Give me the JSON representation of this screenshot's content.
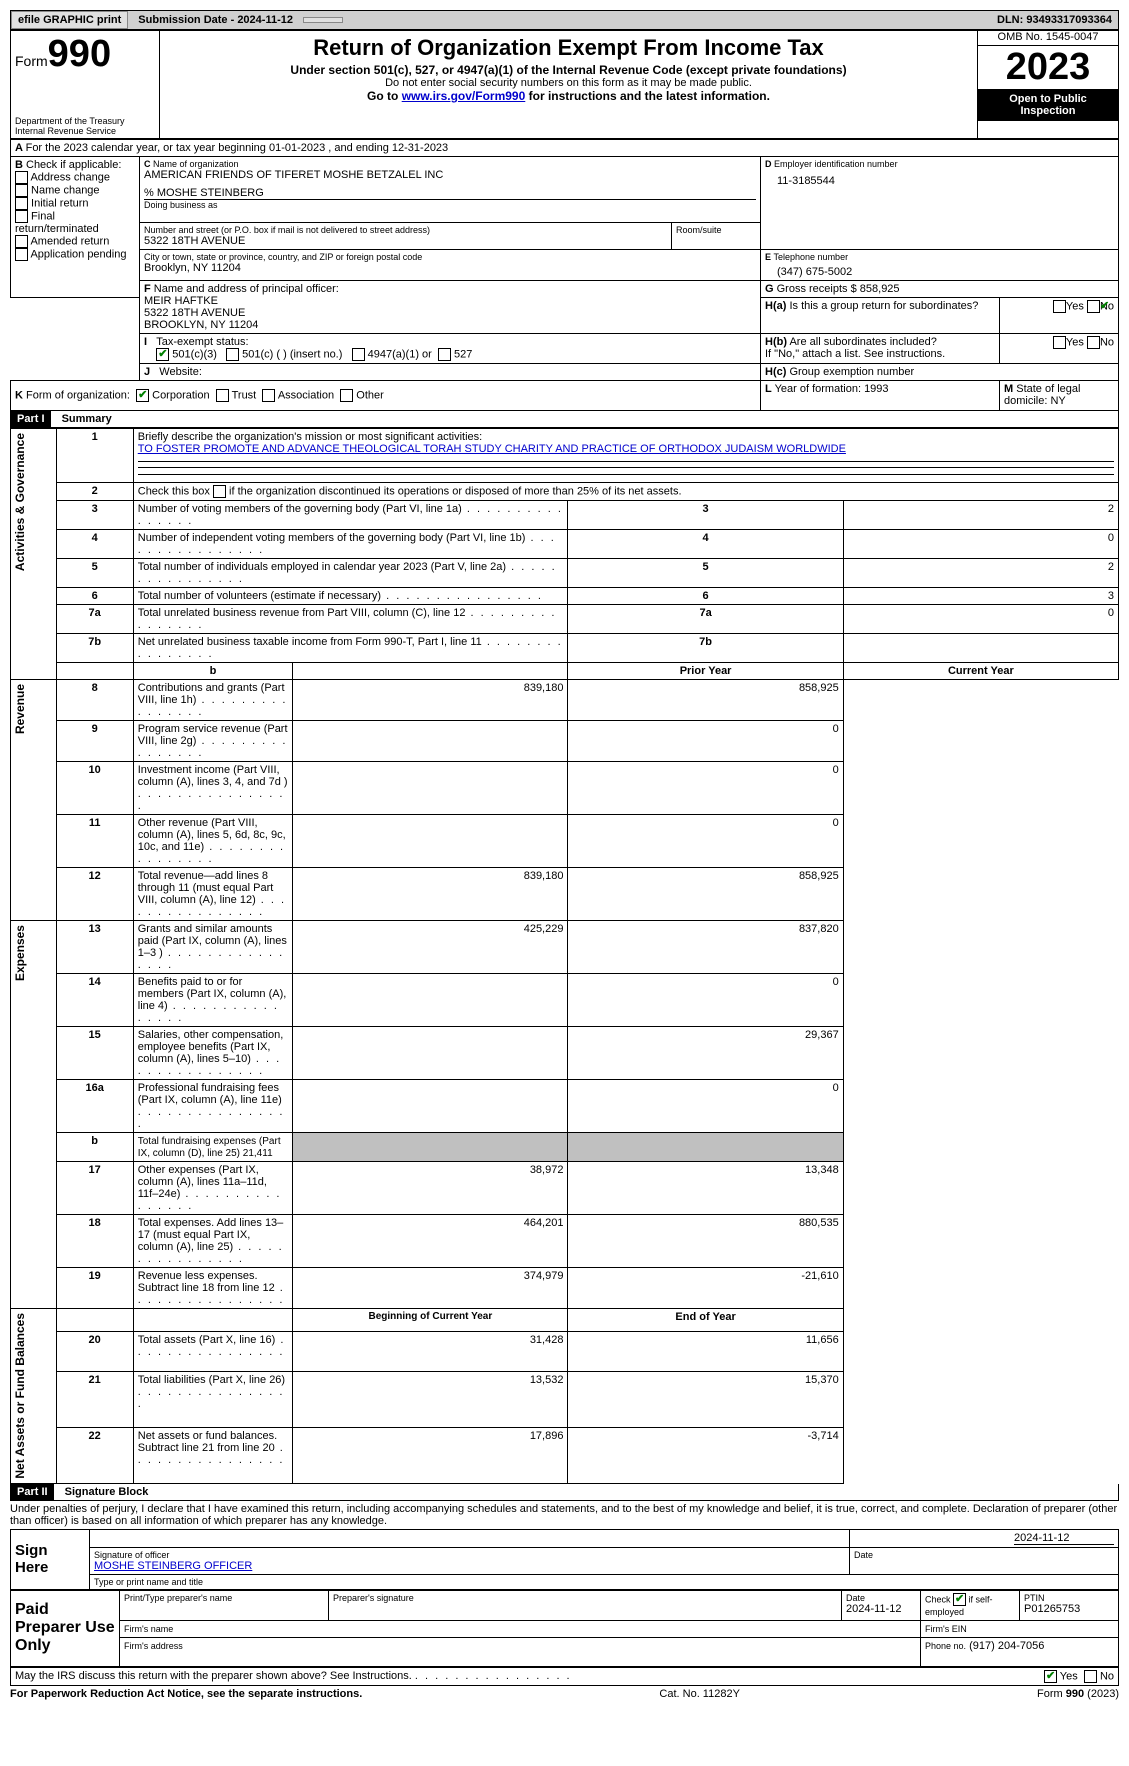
{
  "top": {
    "efile": "efile GRAPHIC print",
    "submission": "Submission Date - 2024-11-12",
    "dln": "DLN: 93493317093364"
  },
  "header": {
    "form_word": "Form",
    "form_num": "990",
    "dept": "Department of the Treasury\nInternal Revenue Service",
    "title": "Return of Organization Exempt From Income Tax",
    "sub1": "Under section 501(c), 527, or 4947(a)(1) of the Internal Revenue Code (except private foundations)",
    "sub2": "Do not enter social security numbers on this form as it may be made public.",
    "sub3_pre": "Go to ",
    "sub3_link": "www.irs.gov/Form990",
    "sub3_post": " for instructions and the latest information.",
    "omb": "OMB No. 1545-0047",
    "year": "2023",
    "open": "Open to Public Inspection"
  },
  "A": {
    "text": "For the 2023 calendar year, or tax year beginning 01-01-2023   , and ending 12-31-2023"
  },
  "B": {
    "label": "Check if applicable:",
    "opts": [
      "Address change",
      "Name change",
      "Initial return",
      "Final return/terminated",
      "Amended return",
      "Application pending"
    ]
  },
  "C": {
    "label": "Name of organization",
    "name": "AMERICAN FRIENDS OF TIFERET MOSHE BETZALEL INC",
    "care": "% MOSHE STEINBERG",
    "dba_label": "Doing business as",
    "street_label": "Number and street (or P.O. box if mail is not delivered to street address)",
    "street": "5322 18TH AVENUE",
    "room_label": "Room/suite",
    "city_label": "City or town, state or province, country, and ZIP or foreign postal code",
    "city": "Brooklyn, NY  11204"
  },
  "D": {
    "label": "Employer identification number",
    "val": "11-3185544"
  },
  "E": {
    "label": "Telephone number",
    "val": "(347) 675-5002"
  },
  "G": {
    "label": "Gross receipts $",
    "val": "858,925"
  },
  "F": {
    "label": "Name and address of principal officer:",
    "name": "MEIR HAFTKE",
    "addr1": "5322 18TH AVENUE",
    "addr2": "BROOKLYN, NY  11204"
  },
  "H": {
    "a": "Is this a group return for subordinates?",
    "b": "Are all subordinates included?",
    "b_note": "If \"No,\" attach a list. See instructions.",
    "c": "Group exemption number",
    "yes": "Yes",
    "no": "No"
  },
  "I": {
    "label": "Tax-exempt status:",
    "o1": "501(c)(3)",
    "o2": "501(c) (  ) (insert no.)",
    "o3": "4947(a)(1) or",
    "o4": "527"
  },
  "J": {
    "label": "Website:"
  },
  "K": {
    "label": "Form of organization:",
    "o1": "Corporation",
    "o2": "Trust",
    "o3": "Association",
    "o4": "Other"
  },
  "L": {
    "label": "Year of formation:",
    "val": "1993"
  },
  "M": {
    "label": "State of legal domicile:",
    "val": "NY"
  },
  "part1": {
    "label": "Part I",
    "title": "Summary"
  },
  "summary": {
    "l1_label": "Briefly describe the organization's mission or most significant activities:",
    "l1_val": "TO FOSTER PROMOTE AND ADVANCE THEOLOGICAL TORAH STUDY CHARITY AND PRACTICE OF ORTHODOX JUDAISM WORLDWIDE",
    "l2": "Check this box      if the organization discontinued its operations or disposed of more than 25% of its net assets.",
    "sideA": "Activities & Governance",
    "sideR": "Revenue",
    "sideE": "Expenses",
    "sideN": "Net Assets or Fund Balances",
    "rows_ag": [
      {
        "n": "3",
        "t": "Number of voting members of the governing body (Part VI, line 1a)",
        "v": "2"
      },
      {
        "n": "4",
        "t": "Number of independent voting members of the governing body (Part VI, line 1b)",
        "v": "0"
      },
      {
        "n": "5",
        "t": "Total number of individuals employed in calendar year 2023 (Part V, line 2a)",
        "v": "2"
      },
      {
        "n": "6",
        "t": "Total number of volunteers (estimate if necessary)",
        "v": "3"
      },
      {
        "n": "7a",
        "t": "Total unrelated business revenue from Part VIII, column (C), line 12",
        "v": "0"
      },
      {
        "n": "7b",
        "t": "Net unrelated business taxable income from Form 990-T, Part I, line 11",
        "v": ""
      }
    ],
    "hdr_prior": "Prior Year",
    "hdr_curr": "Current Year",
    "rows_rev": [
      {
        "n": "8",
        "t": "Contributions and grants (Part VIII, line 1h)",
        "p": "839,180",
        "c": "858,925"
      },
      {
        "n": "9",
        "t": "Program service revenue (Part VIII, line 2g)",
        "p": "",
        "c": "0"
      },
      {
        "n": "10",
        "t": "Investment income (Part VIII, column (A), lines 3, 4, and 7d )",
        "p": "",
        "c": "0"
      },
      {
        "n": "11",
        "t": "Other revenue (Part VIII, column (A), lines 5, 6d, 8c, 9c, 10c, and 11e)",
        "p": "",
        "c": "0"
      },
      {
        "n": "12",
        "t": "Total revenue—add lines 8 through 11 (must equal Part VIII, column (A), line 12)",
        "p": "839,180",
        "c": "858,925"
      }
    ],
    "rows_exp": [
      {
        "n": "13",
        "t": "Grants and similar amounts paid (Part IX, column (A), lines 1–3 )",
        "p": "425,229",
        "c": "837,820"
      },
      {
        "n": "14",
        "t": "Benefits paid to or for members (Part IX, column (A), line 4)",
        "p": "",
        "c": "0"
      },
      {
        "n": "15",
        "t": "Salaries, other compensation, employee benefits (Part IX, column (A), lines 5–10)",
        "p": "",
        "c": "29,367"
      },
      {
        "n": "16a",
        "t": "Professional fundraising fees (Part IX, column (A), line 11e)",
        "p": "",
        "c": "0"
      },
      {
        "n": "b",
        "t": "Total fundraising expenses (Part IX, column (D), line 25) 21,411",
        "p": "GRAY",
        "c": "GRAY",
        "small": true
      },
      {
        "n": "17",
        "t": "Other expenses (Part IX, column (A), lines 11a–11d, 11f–24e)",
        "p": "38,972",
        "c": "13,348"
      },
      {
        "n": "18",
        "t": "Total expenses. Add lines 13–17 (must equal Part IX, column (A), line 25)",
        "p": "464,201",
        "c": "880,535"
      },
      {
        "n": "19",
        "t": "Revenue less expenses. Subtract line 18 from line 12",
        "p": "374,979",
        "c": "-21,610"
      }
    ],
    "hdr_beg": "Beginning of Current Year",
    "hdr_end": "End of Year",
    "rows_net": [
      {
        "n": "20",
        "t": "Total assets (Part X, line 16)",
        "p": "31,428",
        "c": "11,656"
      },
      {
        "n": "21",
        "t": "Total liabilities (Part X, line 26)",
        "p": "13,532",
        "c": "15,370"
      },
      {
        "n": "22",
        "t": "Net assets or fund balances. Subtract line 21 from line 20",
        "p": "17,896",
        "c": "-3,714"
      }
    ]
  },
  "part2": {
    "label": "Part II",
    "title": "Signature Block"
  },
  "perjury": "Under penalties of perjury, I declare that I have examined this return, including accompanying schedules and statements, and to the best of my knowledge and belief, it is true, correct, and complete. Declaration of preparer (other than officer) is based on all information of which preparer has any knowledge.",
  "sign": {
    "here": "Sign Here",
    "sig_label": "Signature of officer",
    "sig_name": "MOSHE STEINBERG OFFICER",
    "name_label": "Type or print name and title",
    "date_label": "Date",
    "date_val": "2024-11-12"
  },
  "paid": {
    "label": "Paid Preparer Use Only",
    "pname": "Print/Type preparer's name",
    "psig": "Preparer's signature",
    "pdate": "Date",
    "pdate_val": "2024-11-12",
    "pcheck": "Check       if self-employed",
    "ptin": "PTIN",
    "ptin_val": "P01265753",
    "fname": "Firm's name",
    "fein": "Firm's EIN",
    "faddr": "Firm's address",
    "fphone": "Phone no.",
    "fphone_val": "(917) 204-7056"
  },
  "discuss": {
    "q": "May the IRS discuss this return with the preparer shown above? See Instructions.",
    "yes": "Yes",
    "no": "No"
  },
  "footer": {
    "left": "For Paperwork Reduction Act Notice, see the separate instructions.",
    "mid": "Cat. No. 11282Y",
    "right": "Form 990 (2023)"
  }
}
